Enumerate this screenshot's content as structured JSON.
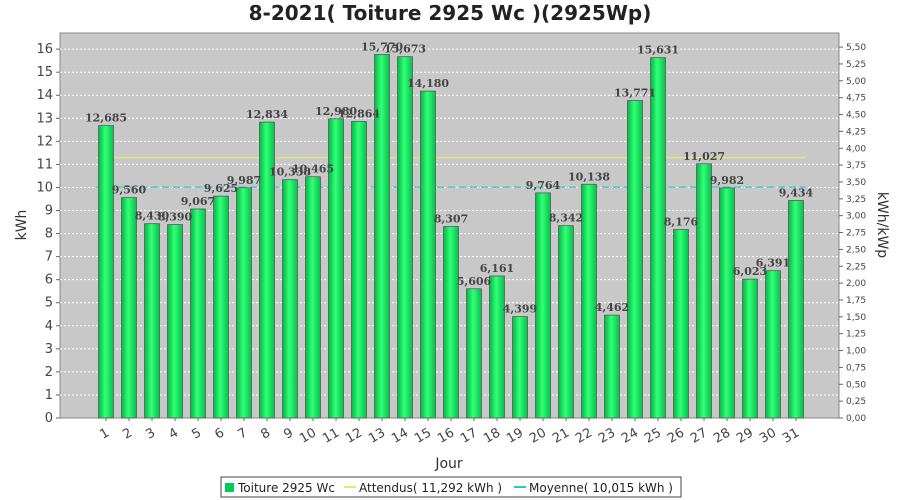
{
  "chart_data": {
    "type": "bar",
    "title": "8-2021( Toiture 2925 Wc )(2925Wp)",
    "xlabel": "Jour",
    "ylabel": "kWh",
    "y2label": "kWh/kWp",
    "ylim": [
      0,
      16.7
    ],
    "yticks": [
      0,
      1,
      2,
      3,
      4,
      5,
      6,
      7,
      8,
      9,
      10,
      11,
      12,
      13,
      14,
      15,
      16
    ],
    "y2lim": [
      0,
      5.709
    ],
    "y2ticks": [
      "0,00",
      "0,25",
      "0,50",
      "0,75",
      "1,00",
      "1,25",
      "1,50",
      "1,75",
      "2,00",
      "2,25",
      "2,50",
      "2,75",
      "3,00",
      "3,25",
      "3,50",
      "3,75",
      "4,00",
      "4,25",
      "4,50",
      "4,75",
      "5,00",
      "5,25",
      "5,50"
    ],
    "categories": [
      "1",
      "2",
      "3",
      "4",
      "5",
      "6",
      "7",
      "8",
      "9",
      "10",
      "11",
      "12",
      "13",
      "14",
      "15",
      "16",
      "17",
      "18",
      "19",
      "20",
      "21",
      "22",
      "23",
      "24",
      "25",
      "26",
      "27",
      "28",
      "29",
      "30",
      "31"
    ],
    "series": [
      {
        "name": "Toiture 2925 Wc",
        "color": "#00dd55",
        "values": [
          12.685,
          9.56,
          8.43,
          8.39,
          9.067,
          9.625,
          9.987,
          12.834,
          10.338,
          10.465,
          12.98,
          12.864,
          15.77,
          15.673,
          14.18,
          8.307,
          5.606,
          6.161,
          4.399,
          9.764,
          8.342,
          10.138,
          4.462,
          13.771,
          15.631,
          8.176,
          11.027,
          9.982,
          6.023,
          6.391,
          9.434
        ],
        "labels": [
          "12,685",
          "9,560",
          "8,430",
          "8,390",
          "9,067",
          "9,625",
          "9,987",
          "12,834",
          "10,338",
          "10,465",
          "12,980",
          "12,864",
          "15,770",
          "15,673",
          "14,180",
          "8,307",
          "5,606",
          "6,161",
          "4,399",
          "9,764",
          "8,342",
          "10,138",
          "4,462",
          "13,771",
          "15,631",
          "8,176",
          "11,027",
          "9,982",
          "6,023",
          "6,391",
          "9,434"
        ]
      }
    ],
    "reference_lines": [
      {
        "name": "Attendus( 11,292 kWh )",
        "value": 11.292,
        "color": "#e8e870",
        "style": "solid"
      },
      {
        "name": "Moyenne( 10,015 kWh )",
        "value": 10.015,
        "color": "#22cccc",
        "style": "dashed"
      }
    ],
    "grid": true,
    "legend_position": "bottom"
  }
}
